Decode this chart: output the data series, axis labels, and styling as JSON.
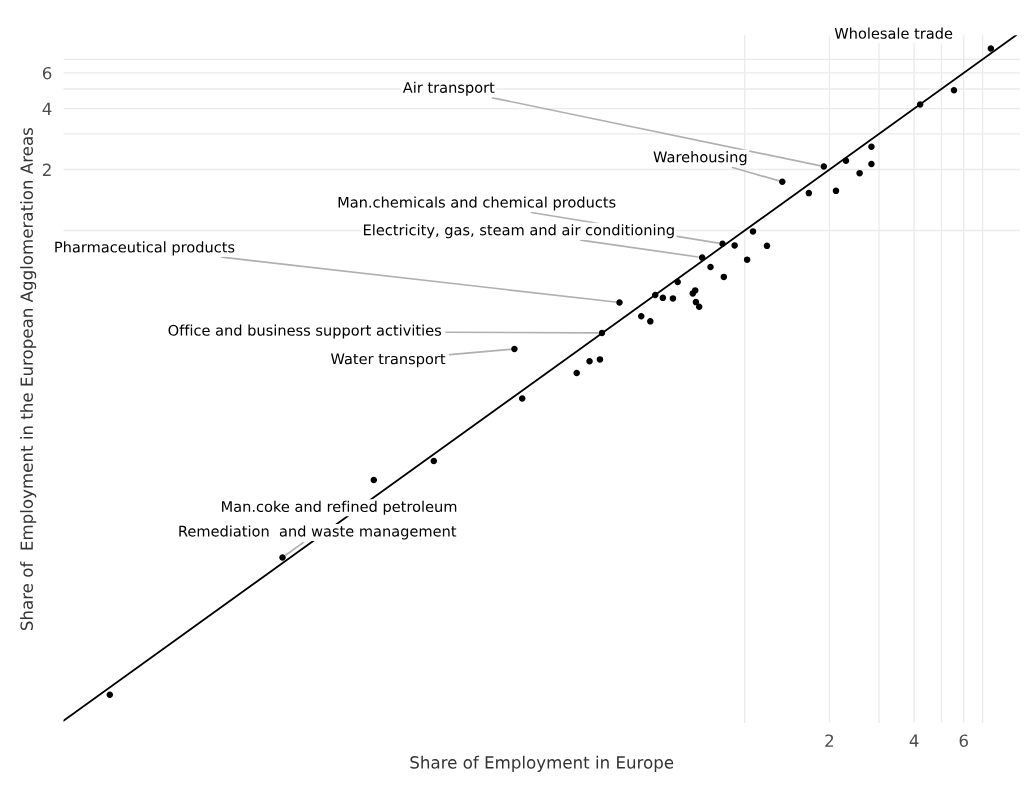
{
  "chart_data": {
    "type": "scatter",
    "xlabel": "Share of Employment in Europe",
    "ylabel": "Share of  Employment in the European Agglomeration Areas",
    "log": "xy",
    "grid": true,
    "marker": "circle",
    "xlim": [
      0.0038,
      9.5
    ],
    "ylim": [
      0.0037,
      9.2
    ],
    "xticks": [
      {
        "value": 1,
        "label": null
      },
      2,
      {
        "value": 3,
        "label": null
      },
      4,
      {
        "value": 5,
        "label": null
      },
      6,
      {
        "value": 7,
        "label": null
      }
    ],
    "yticks": [
      {
        "value": 1,
        "label": null
      },
      2,
      {
        "value": 3,
        "label": null
      },
      4,
      {
        "value": 5,
        "label": null
      },
      6,
      {
        "value": 7,
        "label": null
      }
    ],
    "series": [
      {
        "color": "#000000",
        "x": [
          0.00555,
          0.0228,
          0.0481,
          0.0786,
          0.162,
          0.152,
          0.253,
          0.281,
          0.306,
          0.311,
          0.359,
          0.429,
          0.462,
          0.481,
          0.512,
          0.556,
          0.578,
          0.654,
          0.667,
          0.671,
          0.689,
          0.706,
          0.756,
          0.843,
          0.834,
          0.921,
          1.02,
          1.07,
          1.2,
          1.36,
          1.69,
          2.11,
          1.91,
          2.29,
          2.56,
          2.82,
          2.82,
          4.2,
          5.54,
          7.49
        ],
        "values": [
          0.0051,
          0.0243,
          0.0586,
          0.0727,
          0.148,
          0.26,
          0.198,
          0.226,
          0.231,
          0.312,
          0.441,
          0.377,
          0.356,
          0.48,
          0.465,
          0.462,
          0.557,
          0.489,
          0.506,
          0.443,
          0.42,
          0.735,
          0.66,
          0.59,
          0.86,
          0.844,
          0.718,
          0.99,
          0.84,
          1.74,
          1.53,
          1.57,
          2.07,
          2.21,
          1.92,
          2.59,
          2.13,
          4.19,
          4.93,
          7.92
        ]
      },
      {
        "type": "line",
        "marker": "none",
        "color": "#000000",
        "x": [
          0.0038,
          9.2
        ],
        "values": [
          0.0038,
          9.2
        ]
      }
    ],
    "annotations": [
      {
        "text": "Wholesale trade",
        "x": 7.49,
        "y": 7.92
      },
      {
        "text": "Air transport",
        "x": 1.91,
        "y": 2.07
      },
      {
        "text": "Warehousing",
        "x": 1.36,
        "y": 1.74
      },
      {
        "text": "Man.chemicals and chemical products",
        "x": 0.834,
        "y": 0.86
      },
      {
        "text": "Electricity, gas, steam and air conditioning",
        "x": 0.706,
        "y": 0.735
      },
      {
        "text": "Pharmaceutical products",
        "x": 0.359,
        "y": 0.441
      },
      {
        "text": "Office and business support activities",
        "x": 0.311,
        "y": 0.312
      },
      {
        "text": "Water transport",
        "x": 0.152,
        "y": 0.26
      },
      {
        "text": "Man.coke and refined petroleum",
        "x": 0.0481,
        "y": 0.0586
      },
      {
        "text": "Remediation  and waste management",
        "x": 0.0228,
        "y": 0.0243
      }
    ]
  }
}
